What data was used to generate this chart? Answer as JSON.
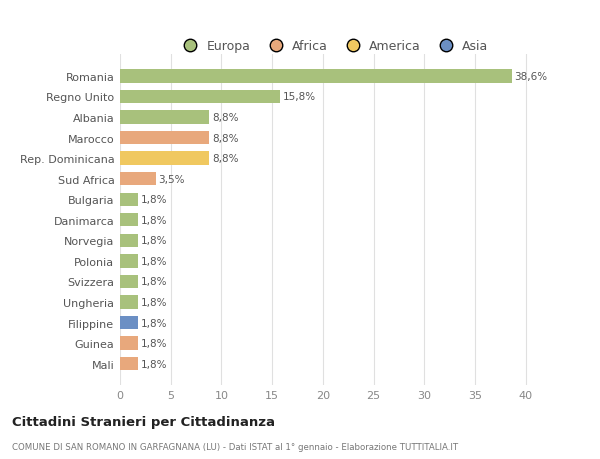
{
  "countries": [
    "Romania",
    "Regno Unito",
    "Albania",
    "Marocco",
    "Rep. Dominicana",
    "Sud Africa",
    "Bulgaria",
    "Danimarca",
    "Norvegia",
    "Polonia",
    "Svizzera",
    "Ungheria",
    "Filippine",
    "Guinea",
    "Mali"
  ],
  "values": [
    38.6,
    15.8,
    8.8,
    8.8,
    8.8,
    3.5,
    1.8,
    1.8,
    1.8,
    1.8,
    1.8,
    1.8,
    1.8,
    1.8,
    1.8
  ],
  "labels": [
    "38,6%",
    "15,8%",
    "8,8%",
    "8,8%",
    "8,8%",
    "3,5%",
    "1,8%",
    "1,8%",
    "1,8%",
    "1,8%",
    "1,8%",
    "1,8%",
    "1,8%",
    "1,8%",
    "1,8%"
  ],
  "colors": [
    "#a8c17c",
    "#a8c17c",
    "#a8c17c",
    "#e8a87c",
    "#f0c860",
    "#e8a87c",
    "#a8c17c",
    "#a8c17c",
    "#a8c17c",
    "#a8c17c",
    "#a8c17c",
    "#a8c17c",
    "#6b8fc4",
    "#e8a87c",
    "#e8a87c"
  ],
  "legend_labels": [
    "Europa",
    "Africa",
    "America",
    "Asia"
  ],
  "legend_colors": [
    "#a8c17c",
    "#e8a87c",
    "#f0c860",
    "#6b8fc4"
  ],
  "title": "Cittadini Stranieri per Cittadinanza",
  "subtitle": "COMUNE DI SAN ROMANO IN GARFAGNANA (LU) - Dati ISTAT al 1° gennaio - Elaborazione TUTTITALIA.IT",
  "xlim": [
    0,
    42
  ],
  "xticks": [
    0,
    5,
    10,
    15,
    20,
    25,
    30,
    35,
    40
  ],
  "bg_color": "#ffffff",
  "grid_color": "#e0e0e0"
}
